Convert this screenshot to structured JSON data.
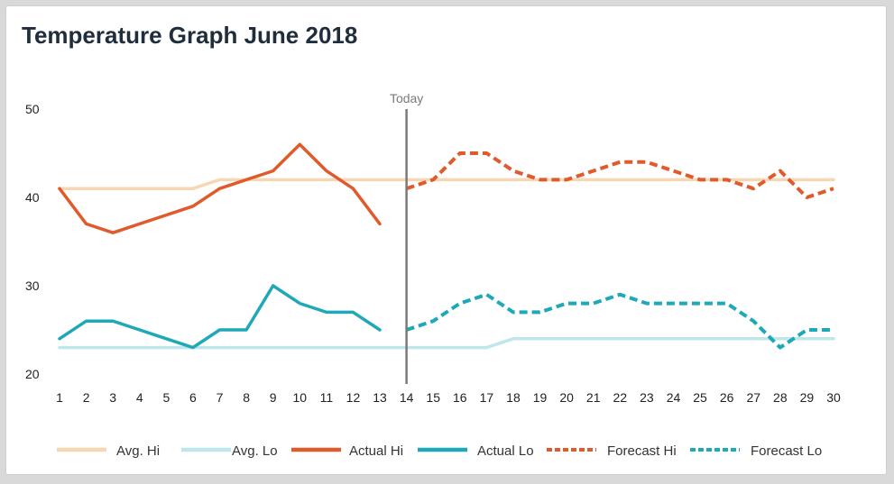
{
  "chart_data": {
    "type": "line",
    "title": "Temperature Graph June 2018",
    "xlabel": "",
    "ylabel": "",
    "x": [
      1,
      2,
      3,
      4,
      5,
      6,
      7,
      8,
      9,
      10,
      11,
      12,
      13,
      14,
      15,
      16,
      17,
      18,
      19,
      20,
      21,
      22,
      23,
      24,
      25,
      26,
      27,
      28,
      29,
      30
    ],
    "xlim": [
      1,
      30
    ],
    "ylim": [
      20,
      50
    ],
    "yticks": [
      20,
      30,
      40,
      50
    ],
    "grid": false,
    "legend": "bottom",
    "annotations": [
      {
        "x": 14,
        "label": "Today",
        "color": "#7a7a7a"
      }
    ],
    "series": [
      {
        "name": "Avg. Hi",
        "color": "#f7d6b3",
        "style": "solid",
        "x": [
          1,
          2,
          3,
          4,
          5,
          6,
          7,
          8,
          9,
          10,
          11,
          12,
          13,
          14,
          15,
          16,
          17,
          18,
          19,
          20,
          21,
          22,
          23,
          24,
          25,
          26,
          27,
          28,
          29,
          30
        ],
        "values": [
          41,
          41,
          41,
          41,
          41,
          41,
          42,
          42,
          42,
          42,
          42,
          42,
          42,
          42,
          42,
          42,
          42,
          42,
          42,
          42,
          42,
          42,
          42,
          42,
          42,
          42,
          42,
          42,
          42,
          42
        ]
      },
      {
        "name": "Avg. Lo",
        "color": "#bfe6ea",
        "style": "solid",
        "x": [
          1,
          2,
          3,
          4,
          5,
          6,
          7,
          8,
          9,
          10,
          11,
          12,
          13,
          14,
          15,
          16,
          17,
          18,
          19,
          20,
          21,
          22,
          23,
          24,
          25,
          26,
          27,
          28,
          29,
          30
        ],
        "values": [
          23,
          23,
          23,
          23,
          23,
          23,
          23,
          23,
          23,
          23,
          23,
          23,
          23,
          23,
          23,
          23,
          23,
          24,
          24,
          24,
          24,
          24,
          24,
          24,
          24,
          24,
          24,
          24,
          24,
          24
        ]
      },
      {
        "name": "Actual Hi",
        "color": "#e05a2b",
        "style": "solid",
        "x": [
          1,
          2,
          3,
          4,
          5,
          6,
          7,
          8,
          9,
          10,
          11,
          12,
          13
        ],
        "values": [
          41,
          37,
          36,
          37,
          38,
          39,
          41,
          42,
          43,
          46,
          43,
          41,
          37
        ]
      },
      {
        "name": "Actual Lo",
        "color": "#1fa8b8",
        "style": "solid",
        "x": [
          1,
          2,
          3,
          4,
          5,
          6,
          7,
          8,
          9,
          10,
          11,
          12,
          13
        ],
        "values": [
          24,
          26,
          26,
          25,
          24,
          23,
          25,
          25,
          30,
          28,
          27,
          27,
          25
        ]
      },
      {
        "name": "Forecast Hi",
        "color": "#e05a2b",
        "style": "dashed",
        "x": [
          14,
          15,
          16,
          17,
          18,
          19,
          20,
          21,
          22,
          23,
          24,
          25,
          26,
          27,
          28,
          29,
          30
        ],
        "values": [
          41,
          42,
          45,
          45,
          43,
          42,
          42,
          43,
          44,
          44,
          43,
          42,
          42,
          41,
          43,
          40,
          41
        ]
      },
      {
        "name": "Forecast Lo",
        "color": "#1fa8b8",
        "style": "dashed",
        "x": [
          14,
          15,
          16,
          17,
          18,
          19,
          20,
          21,
          22,
          23,
          24,
          25,
          26,
          27,
          28,
          29,
          30
        ],
        "values": [
          25,
          26,
          28,
          29,
          27,
          27,
          28,
          28,
          29,
          28,
          28,
          28,
          28,
          26,
          23,
          25,
          25
        ]
      }
    ]
  }
}
